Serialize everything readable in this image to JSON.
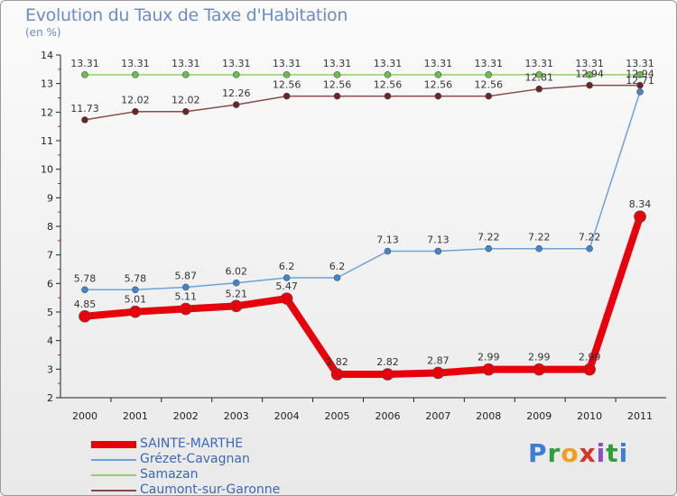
{
  "title": "Evolution du Taux de Taxe d'Habitation",
  "unit_label": "(en %)",
  "brand": {
    "name": "Proxiti",
    "letters": [
      "P",
      "r",
      "o",
      "x",
      "i",
      "t",
      "i"
    ],
    "colors": [
      "#3a7fd5",
      "#2f9e3a",
      "#f0a020",
      "#d8352a",
      "#8b4fc4",
      "#2f9e3a",
      "#3a7fd5"
    ]
  },
  "chart_data": {
    "type": "line",
    "x": [
      "2000",
      "2001",
      "2002",
      "2003",
      "2004",
      "2005",
      "2006",
      "2007",
      "2008",
      "2009",
      "2010",
      "2011"
    ],
    "ylim": [
      2,
      14
    ],
    "yticks": [
      "2",
      "3",
      "4",
      "5",
      "6",
      "7",
      "8",
      "9",
      "10",
      "11",
      "12",
      "13",
      "14"
    ],
    "grid": false,
    "legend_position": "bottom-left",
    "series": [
      {
        "name": "SAINTE-MARTHE",
        "color": "#e8000b",
        "marker": "#e8000b",
        "width": 8,
        "radius": 6.5,
        "values": [
          4.85,
          5.01,
          5.11,
          5.21,
          5.47,
          2.82,
          2.82,
          2.87,
          2.99,
          2.99,
          2.99,
          8.34
        ],
        "labels": [
          "4.85",
          "5.01",
          "5.11",
          "5.21",
          "5.47",
          "2.82",
          "2.82",
          "2.87",
          "2.99",
          "2.99",
          "2.99",
          "8.34"
        ]
      },
      {
        "name": "Grézet-Cavagnan",
        "color": "#6aa3d8",
        "marker": "#3f86cf",
        "width": 1.5,
        "radius": 3.5,
        "values": [
          5.78,
          5.78,
          5.87,
          6.02,
          6.2,
          6.2,
          7.13,
          7.13,
          7.22,
          7.22,
          7.22,
          12.71
        ],
        "labels": [
          "5.78",
          "5.78",
          "5.87",
          "6.02",
          "6.2",
          "6.2",
          "7.13",
          "7.13",
          "7.22",
          "7.22",
          "7.22",
          "12.71"
        ]
      },
      {
        "name": "Samazan",
        "color": "#8fd16a",
        "marker": "#6cc04a",
        "width": 1.5,
        "radius": 3.5,
        "values": [
          13.31,
          13.31,
          13.31,
          13.31,
          13.31,
          13.31,
          13.31,
          13.31,
          13.31,
          13.31,
          13.31,
          13.31
        ],
        "labels": [
          "13.31",
          "13.31",
          "13.31",
          "13.31",
          "13.31",
          "13.31",
          "13.31",
          "13.31",
          "13.31",
          "13.31",
          "13.31",
          "13.31"
        ]
      },
      {
        "name": "Caumont-sur-Garonne",
        "color": "#8a4a4a",
        "marker": "#6b2323",
        "width": 1.5,
        "radius": 3.5,
        "values": [
          11.73,
          12.02,
          12.02,
          12.26,
          12.56,
          12.56,
          12.56,
          12.56,
          12.56,
          12.81,
          12.94,
          12.94
        ],
        "labels": [
          "11.73",
          "12.02",
          "12.02",
          "12.26",
          "12.56",
          "12.56",
          "12.56",
          "12.56",
          "12.56",
          "12.81",
          "12.94",
          "12.94"
        ]
      }
    ]
  }
}
